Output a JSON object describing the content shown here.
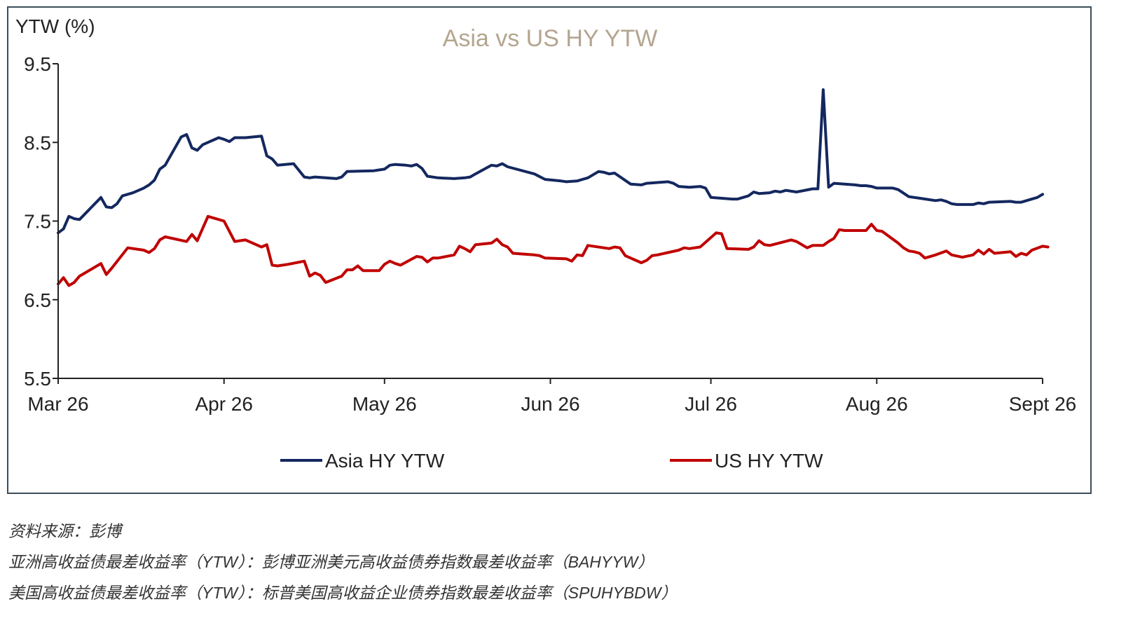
{
  "chart_data": {
    "type": "line",
    "title": "Asia vs US HY YTW",
    "ylabel": "YTW (%)",
    "xlabel": "",
    "ylim": [
      5.5,
      9.5
    ],
    "yticks": [
      "9.5",
      "8.5",
      "7.5",
      "6.5",
      "5.5"
    ],
    "xtick_labels": [
      "Mar 26",
      "Apr 26",
      "May 26",
      "Jun 26",
      "Jul 26",
      "Aug 26",
      "Sept 26"
    ],
    "x_start": "2024-03-26",
    "x_end": "2024-09-26",
    "grid": false,
    "legend_position": "bottom",
    "series": [
      {
        "name": "Asia HY YTW",
        "color": "#14285f",
        "points": [
          [
            "2024-03-26",
            7.35
          ],
          [
            "2024-03-27",
            7.4
          ],
          [
            "2024-03-28",
            7.56
          ],
          [
            "2024-03-29",
            7.53
          ],
          [
            "2024-03-30",
            7.52
          ],
          [
            "2024-04-01",
            7.66
          ],
          [
            "2024-04-03",
            7.8
          ],
          [
            "2024-04-04",
            7.68
          ],
          [
            "2024-04-05",
            7.67
          ],
          [
            "2024-04-06",
            7.72
          ],
          [
            "2024-04-07",
            7.82
          ],
          [
            "2024-04-09",
            7.86
          ],
          [
            "2024-04-11",
            7.92
          ],
          [
            "2024-04-12",
            7.96
          ],
          [
            "2024-04-13",
            8.02
          ],
          [
            "2024-04-14",
            8.16
          ],
          [
            "2024-04-15",
            8.21
          ],
          [
            "2024-04-18",
            8.57
          ],
          [
            "2024-04-19",
            8.6
          ],
          [
            "2024-04-20",
            8.43
          ],
          [
            "2024-04-21",
            8.4
          ],
          [
            "2024-04-22",
            8.47
          ],
          [
            "2024-04-25",
            8.56
          ],
          [
            "2024-04-26",
            8.54
          ],
          [
            "2024-04-27",
            8.51
          ],
          [
            "2024-04-28",
            8.56
          ],
          [
            "2024-04-30",
            8.56
          ],
          [
            "2024-05-03",
            8.58
          ],
          [
            "2024-05-04",
            8.33
          ],
          [
            "2024-05-05",
            8.29
          ],
          [
            "2024-05-06",
            8.21
          ],
          [
            "2024-05-09",
            8.23
          ],
          [
            "2024-05-11",
            8.06
          ],
          [
            "2024-05-12",
            8.05
          ],
          [
            "2024-05-13",
            8.06
          ],
          [
            "2024-05-17",
            8.04
          ],
          [
            "2024-05-18",
            8.06
          ],
          [
            "2024-05-19",
            8.13
          ],
          [
            "2024-05-24",
            8.14
          ],
          [
            "2024-05-25",
            8.15
          ],
          [
            "2024-05-26",
            8.16
          ],
          [
            "2024-05-27",
            8.21
          ],
          [
            "2024-05-28",
            8.22
          ],
          [
            "2024-05-30",
            8.21
          ],
          [
            "2024-05-31",
            8.2
          ],
          [
            "2024-06-01",
            8.22
          ],
          [
            "2024-06-02",
            8.17
          ],
          [
            "2024-06-03",
            8.07
          ],
          [
            "2024-06-05",
            8.05
          ],
          [
            "2024-06-08",
            8.04
          ],
          [
            "2024-06-10",
            8.05
          ],
          [
            "2024-06-11",
            8.06
          ],
          [
            "2024-06-12",
            8.1
          ],
          [
            "2024-06-15",
            8.21
          ],
          [
            "2024-06-16",
            8.2
          ],
          [
            "2024-06-17",
            8.23
          ],
          [
            "2024-06-18",
            8.19
          ],
          [
            "2024-06-23",
            8.1
          ],
          [
            "2024-06-25",
            8.03
          ],
          [
            "2024-06-28",
            8.01
          ],
          [
            "2024-06-29",
            8.0
          ],
          [
            "2024-07-01",
            8.01
          ],
          [
            "2024-07-02",
            8.03
          ],
          [
            "2024-07-03",
            8.05
          ],
          [
            "2024-07-05",
            8.13
          ],
          [
            "2024-07-06",
            8.12
          ],
          [
            "2024-07-07",
            8.1
          ],
          [
            "2024-07-08",
            8.11
          ],
          [
            "2024-07-11",
            7.97
          ],
          [
            "2024-07-13",
            7.96
          ],
          [
            "2024-07-14",
            7.98
          ],
          [
            "2024-07-18",
            8.0
          ],
          [
            "2024-07-19",
            7.98
          ],
          [
            "2024-07-20",
            7.94
          ],
          [
            "2024-07-22",
            7.93
          ],
          [
            "2024-07-24",
            7.94
          ],
          [
            "2024-07-25",
            7.92
          ],
          [
            "2024-07-26",
            7.8
          ],
          [
            "2024-07-30",
            7.78
          ],
          [
            "2024-07-31",
            7.78
          ],
          [
            "2024-08-02",
            7.82
          ],
          [
            "2024-08-03",
            7.87
          ],
          [
            "2024-08-04",
            7.85
          ],
          [
            "2024-08-06",
            7.86
          ],
          [
            "2024-08-07",
            7.88
          ],
          [
            "2024-08-08",
            7.87
          ],
          [
            "2024-08-09",
            7.89
          ],
          [
            "2024-08-11",
            7.87
          ],
          [
            "2024-08-14",
            7.91
          ],
          [
            "2024-08-15",
            7.91
          ],
          [
            "2024-08-16",
            9.17
          ],
          [
            "2024-08-17",
            7.93
          ],
          [
            "2024-08-18",
            7.98
          ],
          [
            "2024-08-22",
            7.96
          ],
          [
            "2024-08-23",
            7.95
          ],
          [
            "2024-08-24",
            7.95
          ],
          [
            "2024-08-25",
            7.94
          ],
          [
            "2024-08-26",
            7.92
          ],
          [
            "2024-08-29",
            7.92
          ],
          [
            "2024-08-30",
            7.9
          ],
          [
            "2024-09-01",
            7.81
          ],
          [
            "2024-09-03",
            7.79
          ],
          [
            "2024-09-06",
            7.76
          ],
          [
            "2024-09-07",
            7.77
          ],
          [
            "2024-09-08",
            7.75
          ],
          [
            "2024-09-09",
            7.72
          ],
          [
            "2024-09-10",
            7.71
          ],
          [
            "2024-09-13",
            7.71
          ],
          [
            "2024-09-14",
            7.73
          ],
          [
            "2024-09-15",
            7.72
          ],
          [
            "2024-09-16",
            7.74
          ],
          [
            "2024-09-20",
            7.75
          ],
          [
            "2024-09-21",
            7.74
          ],
          [
            "2024-09-22",
            7.74
          ],
          [
            "2024-09-23",
            7.76
          ],
          [
            "2024-09-24",
            7.78
          ],
          [
            "2024-09-25",
            7.8
          ],
          [
            "2024-09-26",
            7.84
          ]
        ]
      },
      {
        "name": "US HY YTW",
        "color": "#c00000",
        "points": [
          [
            "2024-03-26",
            6.7
          ],
          [
            "2024-03-27",
            6.78
          ],
          [
            "2024-03-28",
            6.68
          ],
          [
            "2024-03-29",
            6.72
          ],
          [
            "2024-03-30",
            6.8
          ],
          [
            "2024-04-03",
            6.96
          ],
          [
            "2024-04-04",
            6.82
          ],
          [
            "2024-04-05",
            6.9
          ],
          [
            "2024-04-08",
            7.16
          ],
          [
            "2024-04-11",
            7.13
          ],
          [
            "2024-04-12",
            7.1
          ],
          [
            "2024-04-13",
            7.15
          ],
          [
            "2024-04-14",
            7.26
          ],
          [
            "2024-04-15",
            7.3
          ],
          [
            "2024-04-19",
            7.24
          ],
          [
            "2024-04-20",
            7.33
          ],
          [
            "2024-04-21",
            7.25
          ],
          [
            "2024-04-23",
            7.56
          ],
          [
            "2024-04-26",
            7.5
          ],
          [
            "2024-04-28",
            7.24
          ],
          [
            "2024-04-30",
            7.26
          ],
          [
            "2024-05-03",
            7.17
          ],
          [
            "2024-05-04",
            7.2
          ],
          [
            "2024-05-05",
            6.94
          ],
          [
            "2024-05-06",
            6.93
          ],
          [
            "2024-05-08",
            6.95
          ],
          [
            "2024-05-11",
            6.99
          ],
          [
            "2024-05-12",
            6.8
          ],
          [
            "2024-05-13",
            6.84
          ],
          [
            "2024-05-14",
            6.81
          ],
          [
            "2024-05-15",
            6.72
          ],
          [
            "2024-05-18",
            6.8
          ],
          [
            "2024-05-19",
            6.88
          ],
          [
            "2024-05-20",
            6.88
          ],
          [
            "2024-05-21",
            6.93
          ],
          [
            "2024-05-22",
            6.87
          ],
          [
            "2024-05-25",
            6.87
          ],
          [
            "2024-05-26",
            6.95
          ],
          [
            "2024-05-27",
            6.99
          ],
          [
            "2024-05-28",
            6.96
          ],
          [
            "2024-05-29",
            6.94
          ],
          [
            "2024-06-01",
            7.05
          ],
          [
            "2024-06-02",
            7.04
          ],
          [
            "2024-06-03",
            6.98
          ],
          [
            "2024-06-04",
            7.03
          ],
          [
            "2024-06-05",
            7.03
          ],
          [
            "2024-06-08",
            7.07
          ],
          [
            "2024-06-09",
            7.18
          ],
          [
            "2024-06-10",
            7.15
          ],
          [
            "2024-06-11",
            7.11
          ],
          [
            "2024-06-12",
            7.2
          ],
          [
            "2024-06-15",
            7.22
          ],
          [
            "2024-06-16",
            7.27
          ],
          [
            "2024-06-17",
            7.2
          ],
          [
            "2024-06-18",
            7.17
          ],
          [
            "2024-06-19",
            7.09
          ],
          [
            "2024-06-23",
            7.07
          ],
          [
            "2024-06-24",
            7.06
          ],
          [
            "2024-06-25",
            7.03
          ],
          [
            "2024-06-29",
            7.02
          ],
          [
            "2024-06-30",
            6.99
          ],
          [
            "2024-07-01",
            7.07
          ],
          [
            "2024-07-02",
            7.06
          ],
          [
            "2024-07-03",
            7.19
          ],
          [
            "2024-07-07",
            7.15
          ],
          [
            "2024-07-08",
            7.17
          ],
          [
            "2024-07-09",
            7.16
          ],
          [
            "2024-07-10",
            7.06
          ],
          [
            "2024-07-13",
            6.97
          ],
          [
            "2024-07-14",
            7.0
          ],
          [
            "2024-07-15",
            7.06
          ],
          [
            "2024-07-16",
            7.07
          ],
          [
            "2024-07-20",
            7.13
          ],
          [
            "2024-07-21",
            7.16
          ],
          [
            "2024-07-22",
            7.15
          ],
          [
            "2024-07-24",
            7.17
          ],
          [
            "2024-07-27",
            7.35
          ],
          [
            "2024-07-28",
            7.34
          ],
          [
            "2024-07-29",
            7.15
          ],
          [
            "2024-08-02",
            7.14
          ],
          [
            "2024-08-03",
            7.17
          ],
          [
            "2024-08-04",
            7.25
          ],
          [
            "2024-08-05",
            7.2
          ],
          [
            "2024-08-06",
            7.19
          ],
          [
            "2024-08-10",
            7.26
          ],
          [
            "2024-08-11",
            7.24
          ],
          [
            "2024-08-12",
            7.2
          ],
          [
            "2024-08-13",
            7.16
          ],
          [
            "2024-08-14",
            7.19
          ],
          [
            "2024-08-16",
            7.19
          ],
          [
            "2024-08-17",
            7.24
          ],
          [
            "2024-08-18",
            7.28
          ],
          [
            "2024-08-19",
            7.39
          ],
          [
            "2024-08-20",
            7.38
          ],
          [
            "2024-08-24",
            7.38
          ],
          [
            "2024-08-25",
            7.46
          ],
          [
            "2024-08-26",
            7.38
          ],
          [
            "2024-08-27",
            7.37
          ],
          [
            "2024-08-30",
            7.22
          ],
          [
            "2024-08-31",
            7.16
          ],
          [
            "2024-09-01",
            7.12
          ],
          [
            "2024-09-02",
            7.11
          ],
          [
            "2024-09-03",
            7.09
          ],
          [
            "2024-09-04",
            7.03
          ],
          [
            "2024-09-06",
            7.07
          ],
          [
            "2024-09-08",
            7.12
          ],
          [
            "2024-09-09",
            7.07
          ],
          [
            "2024-09-11",
            7.04
          ],
          [
            "2024-09-13",
            7.07
          ],
          [
            "2024-09-14",
            7.13
          ],
          [
            "2024-09-15",
            7.08
          ],
          [
            "2024-09-16",
            7.14
          ],
          [
            "2024-09-17",
            7.09
          ],
          [
            "2024-09-20",
            7.11
          ],
          [
            "2024-09-21",
            7.05
          ],
          [
            "2024-09-22",
            7.09
          ],
          [
            "2024-09-23",
            7.07
          ],
          [
            "2024-09-24",
            7.13
          ],
          [
            "2024-09-26",
            7.18
          ],
          [
            "2024-09-27",
            7.17
          ]
        ]
      }
    ]
  },
  "footnotes": {
    "source": "资料来源：彭博",
    "asia_def": "亚洲高收益债最差收益率（YTW）：彭博亚洲美元高收益债券指数最差收益率（BAHYYW）",
    "us_def": "美国高收益债最差收益率（YTW）：标普美国高收益企业债券指数最差收益率（SPUHYBDW）"
  },
  "colors": {
    "title": "#b4a58f",
    "text": "#222222",
    "axis": "#222222",
    "frame_border": "#3c4e5c"
  }
}
